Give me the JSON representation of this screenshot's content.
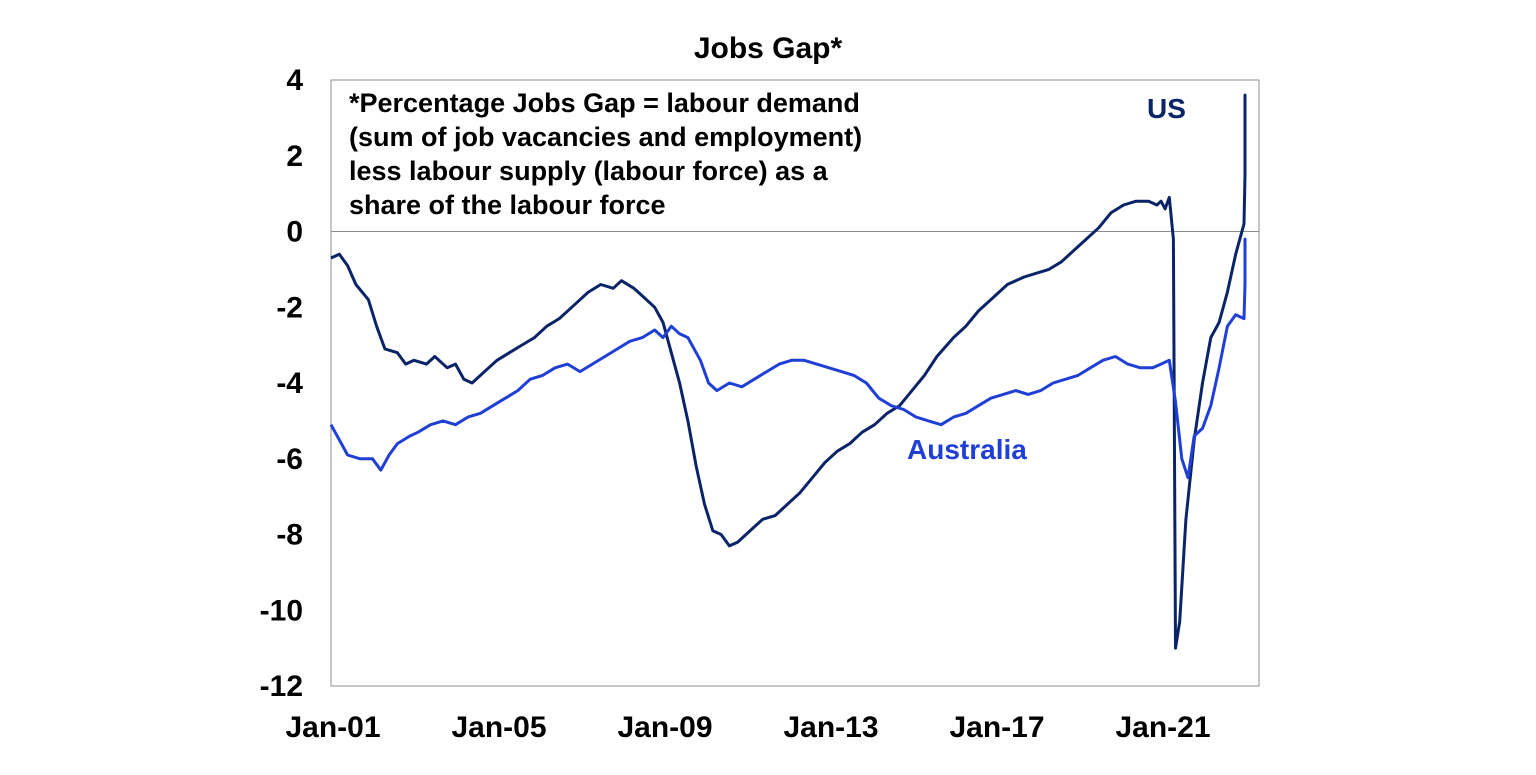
{
  "chart_data": {
    "type": "line",
    "title": "Jobs Gap*",
    "note_lines": [
      "*Percentage Jobs Gap = labour demand",
      "(sum of job vacancies and employment)",
      "less labour supply (labour force) as a",
      "share of the labour force"
    ],
    "x_ticks": [
      "Jan-01",
      "Jan-05",
      "Jan-09",
      "Jan-13",
      "Jan-17",
      "Jan-21"
    ],
    "y_ticks": [
      "4",
      "2",
      "0",
      "-2",
      "-4",
      "-6",
      "-8",
      "-10",
      "-12"
    ],
    "ylim": [
      -12,
      4
    ],
    "xlim": [
      2001.0,
      2023.5
    ],
    "grid": false,
    "zero_line": true,
    "series": [
      {
        "name": "US",
        "color": "#0b2468",
        "points": [
          [
            2001.0,
            -0.7
          ],
          [
            2001.2,
            -0.6
          ],
          [
            2001.4,
            -0.9
          ],
          [
            2001.6,
            -1.4
          ],
          [
            2001.9,
            -1.8
          ],
          [
            2002.1,
            -2.5
          ],
          [
            2002.3,
            -3.1
          ],
          [
            2002.6,
            -3.2
          ],
          [
            2002.8,
            -3.5
          ],
          [
            2003.0,
            -3.4
          ],
          [
            2003.3,
            -3.5
          ],
          [
            2003.5,
            -3.3
          ],
          [
            2003.8,
            -3.6
          ],
          [
            2004.0,
            -3.5
          ],
          [
            2004.2,
            -3.9
          ],
          [
            2004.4,
            -4.0
          ],
          [
            2004.6,
            -3.8
          ],
          [
            2004.8,
            -3.6
          ],
          [
            2005.0,
            -3.4
          ],
          [
            2005.3,
            -3.2
          ],
          [
            2005.6,
            -3.0
          ],
          [
            2005.9,
            -2.8
          ],
          [
            2006.2,
            -2.5
          ],
          [
            2006.5,
            -2.3
          ],
          [
            2006.8,
            -2.0
          ],
          [
            2007.0,
            -1.8
          ],
          [
            2007.2,
            -1.6
          ],
          [
            2007.5,
            -1.4
          ],
          [
            2007.8,
            -1.5
          ],
          [
            2008.0,
            -1.3
          ],
          [
            2008.3,
            -1.5
          ],
          [
            2008.5,
            -1.7
          ],
          [
            2008.8,
            -2.0
          ],
          [
            2009.0,
            -2.4
          ],
          [
            2009.2,
            -3.2
          ],
          [
            2009.4,
            -4.0
          ],
          [
            2009.6,
            -5.0
          ],
          [
            2009.8,
            -6.2
          ],
          [
            2010.0,
            -7.2
          ],
          [
            2010.2,
            -7.9
          ],
          [
            2010.4,
            -8.0
          ],
          [
            2010.6,
            -8.3
          ],
          [
            2010.8,
            -8.2
          ],
          [
            2011.0,
            -8.0
          ],
          [
            2011.2,
            -7.8
          ],
          [
            2011.4,
            -7.6
          ],
          [
            2011.7,
            -7.5
          ],
          [
            2012.0,
            -7.2
          ],
          [
            2012.3,
            -6.9
          ],
          [
            2012.6,
            -6.5
          ],
          [
            2012.9,
            -6.1
          ],
          [
            2013.2,
            -5.8
          ],
          [
            2013.5,
            -5.6
          ],
          [
            2013.8,
            -5.3
          ],
          [
            2014.1,
            -5.1
          ],
          [
            2014.4,
            -4.8
          ],
          [
            2014.7,
            -4.6
          ],
          [
            2015.0,
            -4.2
          ],
          [
            2015.3,
            -3.8
          ],
          [
            2015.6,
            -3.3
          ],
          [
            2016.0,
            -2.8
          ],
          [
            2016.3,
            -2.5
          ],
          [
            2016.6,
            -2.1
          ],
          [
            2017.0,
            -1.7
          ],
          [
            2017.3,
            -1.4
          ],
          [
            2017.7,
            -1.2
          ],
          [
            2018.0,
            -1.1
          ],
          [
            2018.3,
            -1.0
          ],
          [
            2018.6,
            -0.8
          ],
          [
            2018.9,
            -0.5
          ],
          [
            2019.2,
            -0.2
          ],
          [
            2019.5,
            0.1
          ],
          [
            2019.8,
            0.5
          ],
          [
            2020.1,
            0.7
          ],
          [
            2020.4,
            0.8
          ],
          [
            2020.7,
            0.8
          ],
          [
            2020.9,
            0.7
          ],
          [
            2021.0,
            0.8
          ],
          [
            2021.1,
            0.6
          ],
          [
            2021.2,
            0.9
          ],
          [
            2021.3,
            -0.2
          ],
          [
            2021.35,
            -11.0
          ],
          [
            2021.45,
            -10.3
          ],
          [
            2021.6,
            -7.6
          ],
          [
            2021.8,
            -5.5
          ],
          [
            2022.0,
            -4.0
          ],
          [
            2022.2,
            -2.8
          ],
          [
            2022.4,
            -2.4
          ],
          [
            2022.6,
            -1.6
          ],
          [
            2022.8,
            -0.6
          ],
          [
            2023.0,
            0.2
          ],
          [
            2023.2,
            1.5
          ],
          [
            2023.4,
            2.2
          ],
          [
            2023.6,
            2.9
          ],
          [
            2023.8,
            3.1
          ],
          [
            2024.0,
            3.6
          ],
          [
            2024.2,
            3.3
          ],
          [
            2024.4,
            2.8
          ],
          [
            2024.6,
            2.9
          ]
        ]
      },
      {
        "name": "Australia",
        "color": "#1f3fd6",
        "points": [
          [
            2001.0,
            -5.1
          ],
          [
            2001.2,
            -5.5
          ],
          [
            2001.4,
            -5.9
          ],
          [
            2001.7,
            -6.0
          ],
          [
            2002.0,
            -6.0
          ],
          [
            2002.2,
            -6.3
          ],
          [
            2002.4,
            -5.9
          ],
          [
            2002.6,
            -5.6
          ],
          [
            2002.9,
            -5.4
          ],
          [
            2003.1,
            -5.3
          ],
          [
            2003.4,
            -5.1
          ],
          [
            2003.7,
            -5.0
          ],
          [
            2004.0,
            -5.1
          ],
          [
            2004.3,
            -4.9
          ],
          [
            2004.6,
            -4.8
          ],
          [
            2004.9,
            -4.6
          ],
          [
            2005.2,
            -4.4
          ],
          [
            2005.5,
            -4.2
          ],
          [
            2005.8,
            -3.9
          ],
          [
            2006.1,
            -3.8
          ],
          [
            2006.4,
            -3.6
          ],
          [
            2006.7,
            -3.5
          ],
          [
            2007.0,
            -3.7
          ],
          [
            2007.3,
            -3.5
          ],
          [
            2007.6,
            -3.3
          ],
          [
            2007.9,
            -3.1
          ],
          [
            2008.2,
            -2.9
          ],
          [
            2008.5,
            -2.8
          ],
          [
            2008.8,
            -2.6
          ],
          [
            2009.0,
            -2.8
          ],
          [
            2009.2,
            -2.5
          ],
          [
            2009.4,
            -2.7
          ],
          [
            2009.6,
            -2.8
          ],
          [
            2009.9,
            -3.4
          ],
          [
            2010.1,
            -4.0
          ],
          [
            2010.3,
            -4.2
          ],
          [
            2010.6,
            -4.0
          ],
          [
            2010.9,
            -4.1
          ],
          [
            2011.2,
            -3.9
          ],
          [
            2011.5,
            -3.7
          ],
          [
            2011.8,
            -3.5
          ],
          [
            2012.1,
            -3.4
          ],
          [
            2012.4,
            -3.4
          ],
          [
            2012.7,
            -3.5
          ],
          [
            2013.0,
            -3.6
          ],
          [
            2013.3,
            -3.7
          ],
          [
            2013.6,
            -3.8
          ],
          [
            2013.9,
            -4.0
          ],
          [
            2014.2,
            -4.4
          ],
          [
            2014.5,
            -4.6
          ],
          [
            2014.8,
            -4.7
          ],
          [
            2015.1,
            -4.9
          ],
          [
            2015.4,
            -5.0
          ],
          [
            2015.7,
            -5.1
          ],
          [
            2016.0,
            -4.9
          ],
          [
            2016.3,
            -4.8
          ],
          [
            2016.6,
            -4.6
          ],
          [
            2016.9,
            -4.4
          ],
          [
            2017.2,
            -4.3
          ],
          [
            2017.5,
            -4.2
          ],
          [
            2017.8,
            -4.3
          ],
          [
            2018.1,
            -4.2
          ],
          [
            2018.4,
            -4.0
          ],
          [
            2018.7,
            -3.9
          ],
          [
            2019.0,
            -3.8
          ],
          [
            2019.3,
            -3.6
          ],
          [
            2019.6,
            -3.4
          ],
          [
            2019.9,
            -3.3
          ],
          [
            2020.2,
            -3.5
          ],
          [
            2020.5,
            -3.6
          ],
          [
            2020.8,
            -3.6
          ],
          [
            2021.0,
            -3.5
          ],
          [
            2021.2,
            -3.4
          ],
          [
            2021.35,
            -4.5
          ],
          [
            2021.5,
            -6.0
          ],
          [
            2021.65,
            -6.5
          ],
          [
            2021.8,
            -5.4
          ],
          [
            2022.0,
            -5.2
          ],
          [
            2022.2,
            -4.6
          ],
          [
            2022.4,
            -3.6
          ],
          [
            2022.6,
            -2.5
          ],
          [
            2022.8,
            -2.2
          ],
          [
            2023.0,
            -2.3
          ],
          [
            2023.2,
            -1.4
          ],
          [
            2023.4,
            -1.0
          ],
          [
            2023.6,
            -0.6
          ],
          [
            2023.8,
            -0.3
          ],
          [
            2024.0,
            -0.2
          ],
          [
            2024.2,
            -0.3
          ],
          [
            2024.4,
            -0.4
          ]
        ]
      }
    ]
  }
}
